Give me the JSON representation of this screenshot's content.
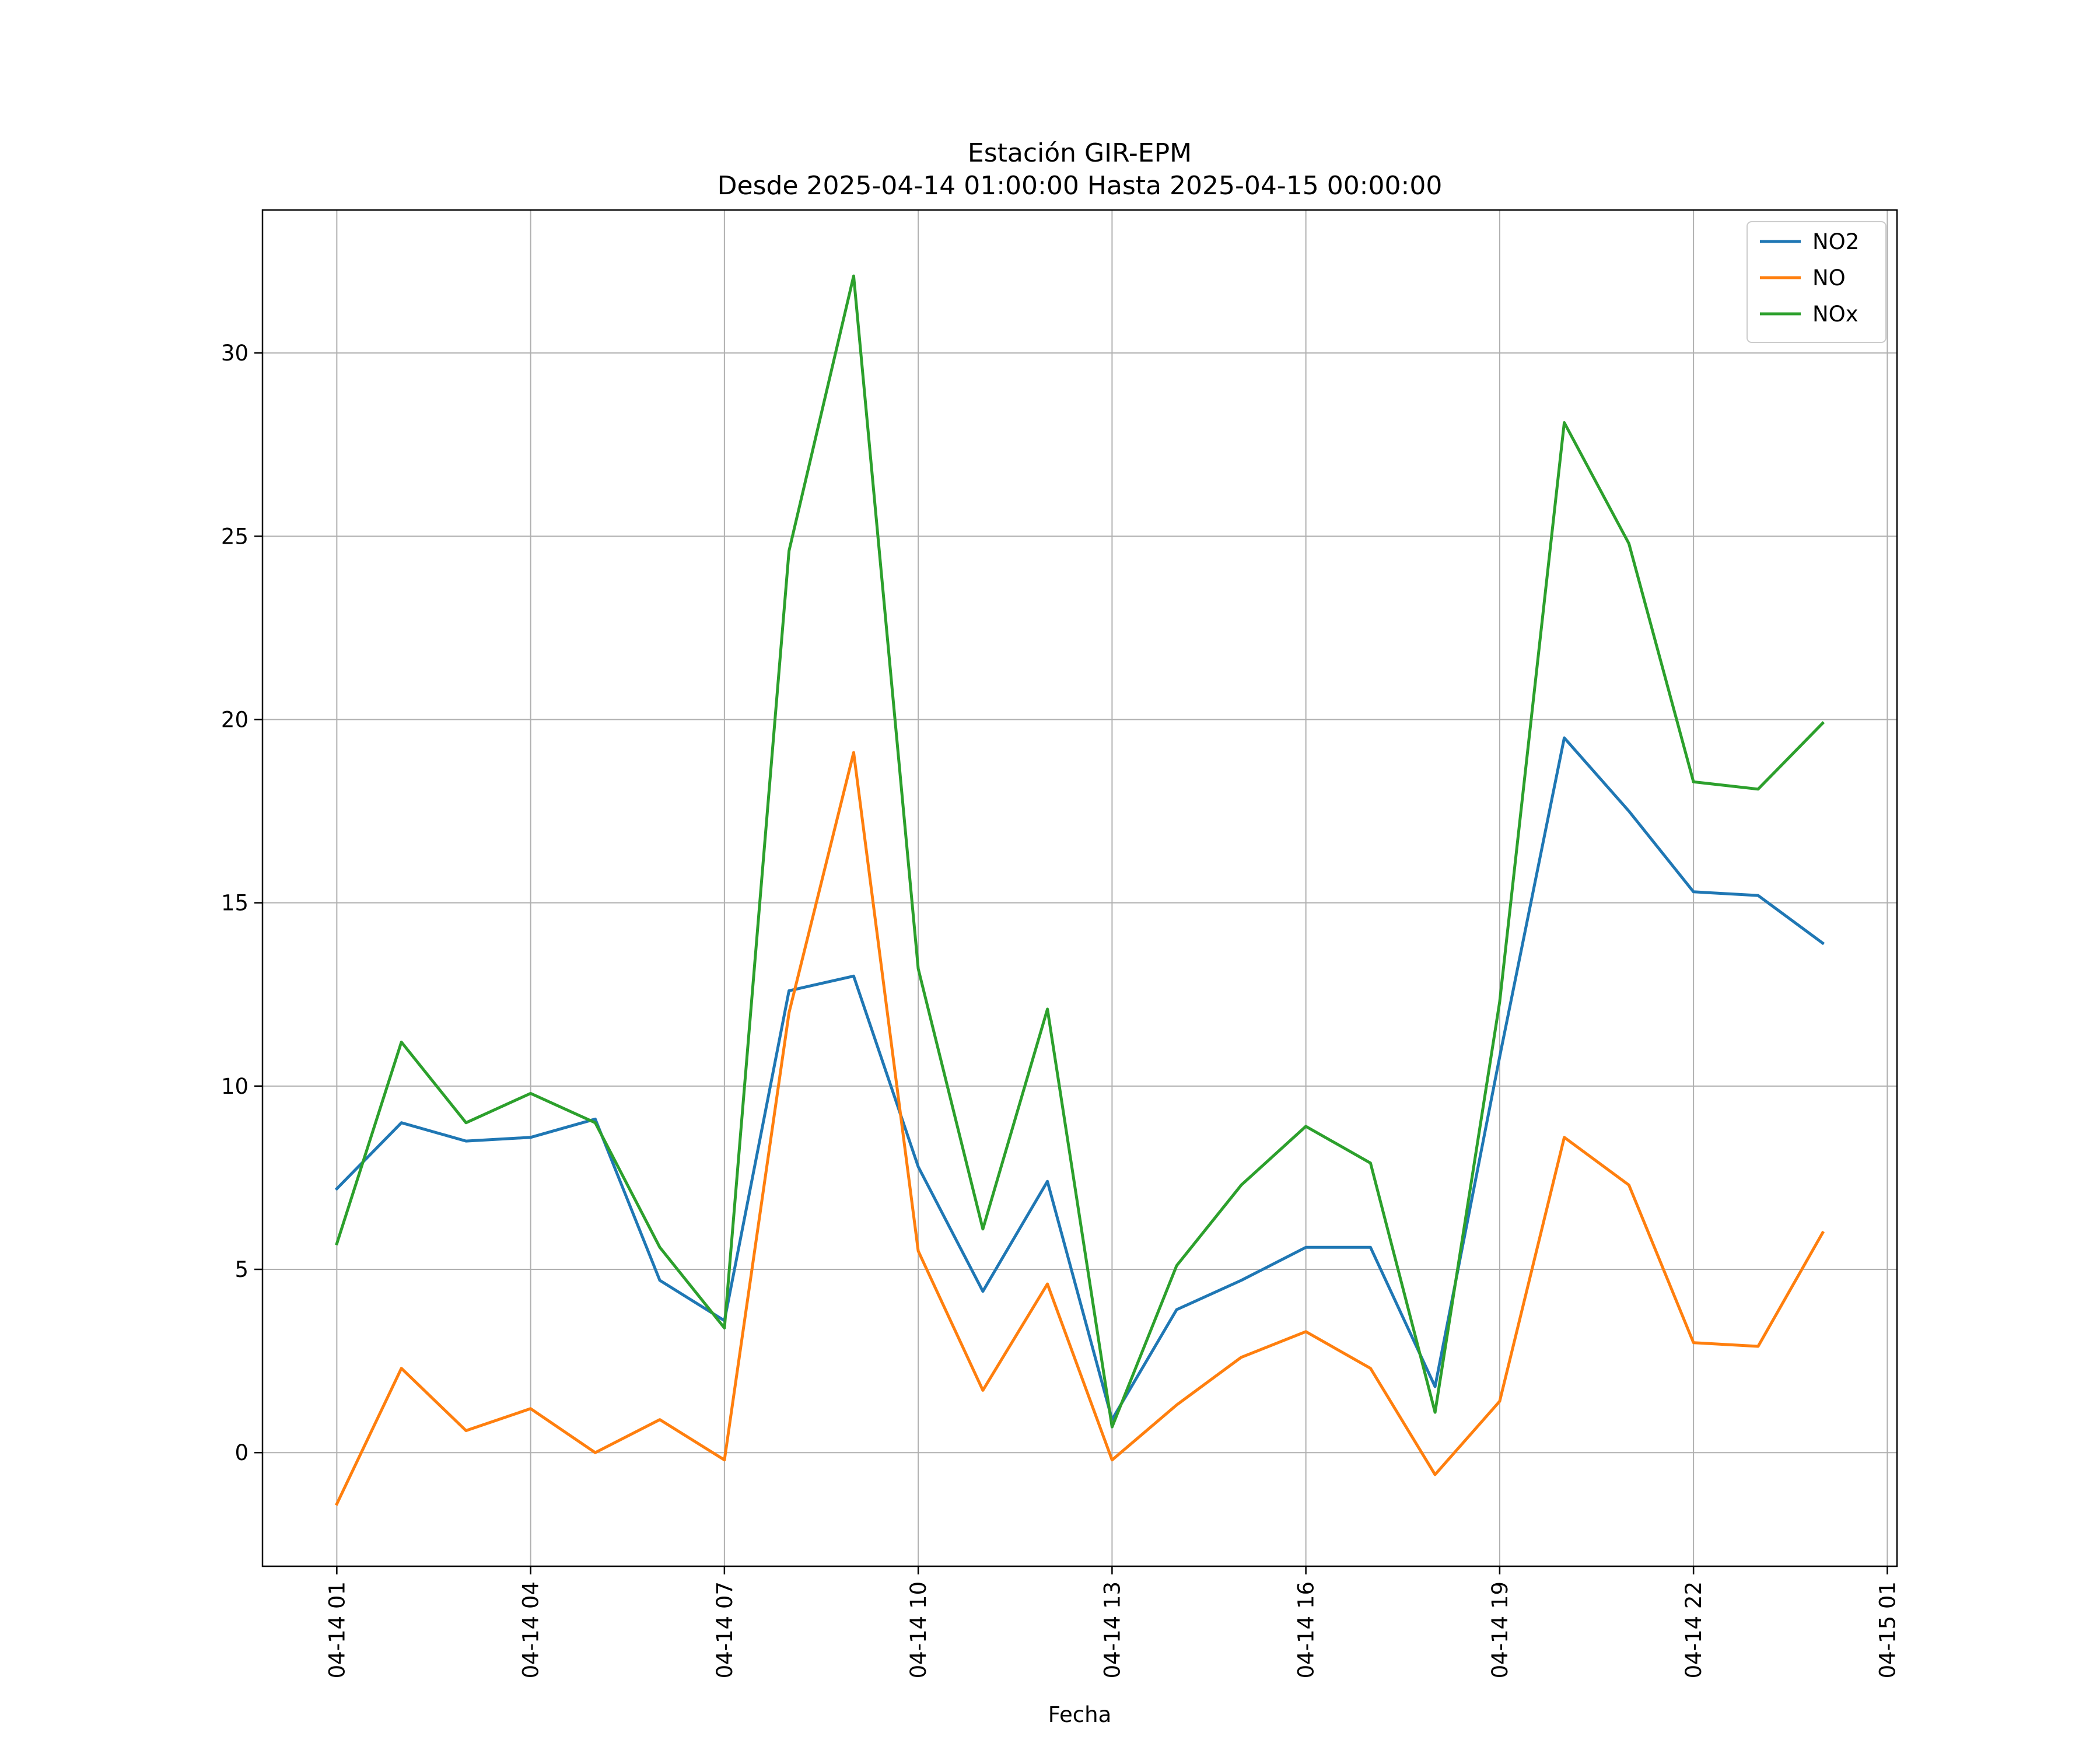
{
  "chart_data": {
    "type": "line",
    "title": "Estación GIR-EPM",
    "subtitle": "Desde 2025-04-14 01:00:00 Hasta 2025-04-15 00:00:00",
    "xlabel": "Fecha",
    "ylabel": "",
    "x": [
      "2025-04-14 01:00",
      "2025-04-14 02:00",
      "2025-04-14 03:00",
      "2025-04-14 04:00",
      "2025-04-14 05:00",
      "2025-04-14 06:00",
      "2025-04-14 07:00",
      "2025-04-14 08:00",
      "2025-04-14 09:00",
      "2025-04-14 10:00",
      "2025-04-14 11:00",
      "2025-04-14 12:00",
      "2025-04-14 13:00",
      "2025-04-14 14:00",
      "2025-04-14 15:00",
      "2025-04-14 16:00",
      "2025-04-14 17:00",
      "2025-04-14 18:00",
      "2025-04-14 19:00",
      "2025-04-14 20:00",
      "2025-04-14 21:00",
      "2025-04-14 22:00",
      "2025-04-14 23:00",
      "2025-04-15 00:00"
    ],
    "x_tick_labels": [
      "04-14 01",
      "04-14 04",
      "04-14 07",
      "04-14 10",
      "04-14 13",
      "04-14 16",
      "04-14 19",
      "04-14 22",
      "04-15 01"
    ],
    "y_ticks": [
      0,
      5,
      10,
      15,
      20,
      25,
      30
    ],
    "ylim": [
      -3.1,
      33.9
    ],
    "xlim": [
      "2025-04-13 23:51",
      "2025-04-15 01:09"
    ],
    "grid": true,
    "legend_position": "top-right",
    "series": [
      {
        "name": "NO2",
        "color": "#1f77b4",
        "values": [
          7.2,
          9.0,
          8.5,
          8.6,
          9.1,
          4.7,
          3.6,
          12.6,
          13.0,
          7.8,
          4.4,
          7.4,
          0.9,
          3.9,
          4.7,
          5.6,
          5.6,
          1.8,
          10.8,
          19.5,
          17.5,
          15.3,
          15.2,
          13.9
        ]
      },
      {
        "name": "NO",
        "color": "#ff7f0e",
        "values": [
          -1.4,
          2.3,
          0.6,
          1.2,
          0.0,
          0.9,
          -0.2,
          12.0,
          19.1,
          5.5,
          1.7,
          4.6,
          -0.2,
          1.3,
          2.6,
          3.3,
          2.3,
          -0.6,
          1.4,
          8.6,
          7.3,
          3.0,
          2.9,
          6.0
        ]
      },
      {
        "name": "NOx",
        "color": "#2ca02c",
        "values": [
          5.7,
          11.2,
          9.0,
          9.8,
          9.0,
          5.6,
          3.4,
          24.6,
          32.1,
          13.2,
          6.1,
          12.1,
          0.7,
          5.1,
          7.3,
          8.9,
          7.9,
          1.1,
          12.3,
          28.1,
          24.8,
          18.3,
          18.1,
          19.9
        ]
      }
    ]
  }
}
